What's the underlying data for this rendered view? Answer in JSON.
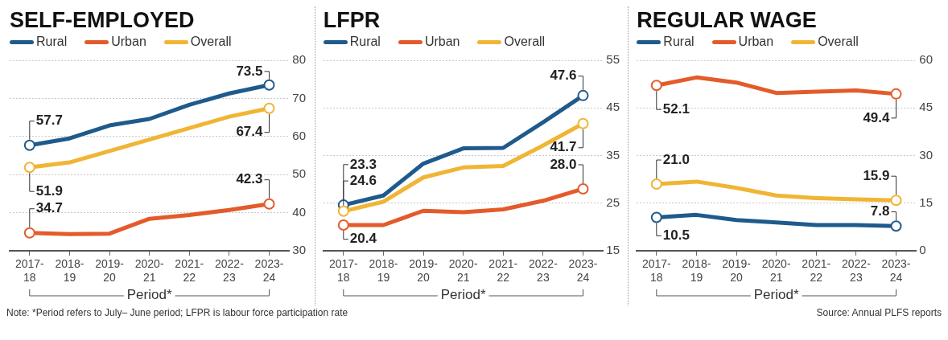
{
  "chart_data": [
    {
      "type": "line",
      "title": "SELF-EMPLOYED",
      "xlabel": "Period*",
      "categories": [
        "2017-18",
        "2018-19",
        "2019-20",
        "2020-21",
        "2021-22",
        "2022-23",
        "2023-24"
      ],
      "series": [
        {
          "name": "Rural",
          "color": "#1f5a8c",
          "values": [
            57.7,
            59.5,
            62.9,
            64.6,
            68.3,
            71.3,
            73.5
          ],
          "value_labels": [
            "57.7",
            null,
            null,
            null,
            null,
            null,
            "73.5"
          ]
        },
        {
          "name": "Urban",
          "color": "#e45b2b",
          "values": [
            34.7,
            34.4,
            34.5,
            38.4,
            39.4,
            40.7,
            42.3
          ],
          "value_labels": [
            "34.7",
            null,
            null,
            null,
            null,
            null,
            "42.3"
          ]
        },
        {
          "name": "Overall",
          "color": "#f0b535",
          "values": [
            51.9,
            53.2,
            56.2,
            59.2,
            62.2,
            65.2,
            67.4
          ],
          "value_labels": [
            "51.9",
            null,
            null,
            null,
            null,
            null,
            "67.4"
          ]
        }
      ],
      "ylim": [
        30,
        80
      ],
      "yticks": [
        30,
        40,
        50,
        60,
        70,
        80
      ],
      "grid": "y",
      "legend": "top left",
      "line_style": "solid",
      "annotations": [
        "Note: *Period refers to July– June period; LFPR is labour force participation rate"
      ]
    },
    {
      "type": "line",
      "title": "LFPR",
      "xlabel": "Period*",
      "categories": [
        "2017-18",
        "2018-19",
        "2019-20",
        "2020-21",
        "2021-22",
        "2022-23",
        "2023-24"
      ],
      "series": [
        {
          "name": "Rural",
          "color": "#1f5a8c",
          "values": [
            24.6,
            26.6,
            33.3,
            36.5,
            36.6,
            42.0,
            47.6
          ],
          "value_labels": [
            "24.6",
            null,
            null,
            null,
            null,
            null,
            "47.6"
          ]
        },
        {
          "name": "Urban",
          "color": "#e45b2b",
          "values": [
            20.4,
            20.4,
            23.4,
            23.1,
            23.7,
            25.5,
            28.0
          ],
          "value_labels": [
            "20.4",
            null,
            null,
            null,
            null,
            null,
            "28.0"
          ]
        },
        {
          "name": "Overall",
          "color": "#f0b535",
          "values": [
            23.3,
            25.3,
            30.4,
            32.5,
            32.8,
            37.1,
            41.7
          ],
          "value_labels": [
            "23.3",
            null,
            null,
            null,
            null,
            null,
            "41.7"
          ]
        }
      ],
      "ylim": [
        15,
        55
      ],
      "yticks": [
        15,
        25,
        35,
        45,
        55
      ],
      "grid": "y",
      "legend": "top left",
      "line_style": "solid"
    },
    {
      "type": "line",
      "title": "REGULAR WAGE",
      "xlabel": "Period*",
      "categories": [
        "2017-18",
        "2018-19",
        "2019-20",
        "2020-21",
        "2021-22",
        "2022-23",
        "2023-24"
      ],
      "series": [
        {
          "name": "Rural",
          "color": "#1f5a8c",
          "values": [
            10.5,
            11.3,
            9.7,
            8.9,
            8.1,
            8.1,
            7.8
          ],
          "value_labels": [
            "10.5",
            null,
            null,
            null,
            null,
            null,
            "7.8"
          ]
        },
        {
          "name": "Urban",
          "color": "#e45b2b",
          "values": [
            52.1,
            54.6,
            53.0,
            49.7,
            50.1,
            50.5,
            49.4
          ],
          "value_labels": [
            "52.1",
            null,
            null,
            null,
            null,
            null,
            "49.4"
          ]
        },
        {
          "name": "Overall",
          "color": "#f0b535",
          "values": [
            21.0,
            21.8,
            19.8,
            17.4,
            16.6,
            16.2,
            15.9
          ],
          "value_labels": [
            "21.0",
            null,
            null,
            null,
            null,
            null,
            "15.9"
          ]
        }
      ],
      "ylim": [
        0,
        60
      ],
      "yticks": [
        0,
        15,
        30,
        45,
        60
      ],
      "grid": "y",
      "legend": "top left",
      "line_style": "solid",
      "annotations": [
        "Source: Annual PLFS reports"
      ]
    }
  ]
}
